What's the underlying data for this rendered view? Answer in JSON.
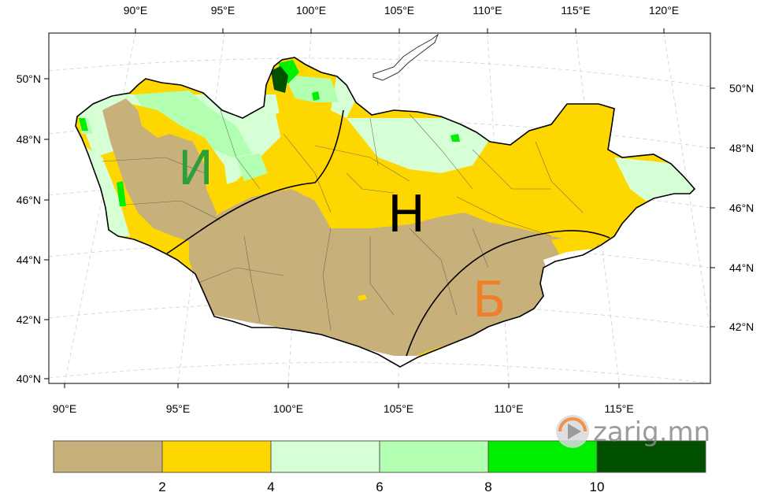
{
  "map": {
    "top_lon_labels": [
      "90°E",
      "95°E",
      "100°E",
      "105°E",
      "110°E",
      "115°E",
      "120°E"
    ],
    "bottom_lon_labels": [
      "90°E",
      "95°E",
      "100°E",
      "105°E",
      "110°E",
      "115°E"
    ],
    "left_lat_labels": [
      "50°N",
      "48°N",
      "46°N",
      "44°N",
      "42°N",
      "40°N"
    ],
    "right_lat_labels": [
      "50°N",
      "48°N",
      "46°N",
      "44°N",
      "42°N"
    ],
    "zone_labels": [
      {
        "text": "И",
        "color": "#2e9e3a"
      },
      {
        "text": "Н",
        "color": "#000000"
      },
      {
        "text": "Б",
        "color": "#f07f2a"
      }
    ]
  },
  "legend": {
    "bins": [
      {
        "color": "#c8b07a"
      },
      {
        "color": "#ffd700"
      },
      {
        "color": "#d6ffd6"
      },
      {
        "color": "#b2ffb2"
      },
      {
        "color": "#00ee00"
      },
      {
        "color": "#005000"
      }
    ],
    "labels": [
      "2",
      "4",
      "6",
      "8",
      "10"
    ]
  },
  "watermark": {
    "text": "zarig.mn",
    "play_icon_color": "#f07f2a"
  }
}
